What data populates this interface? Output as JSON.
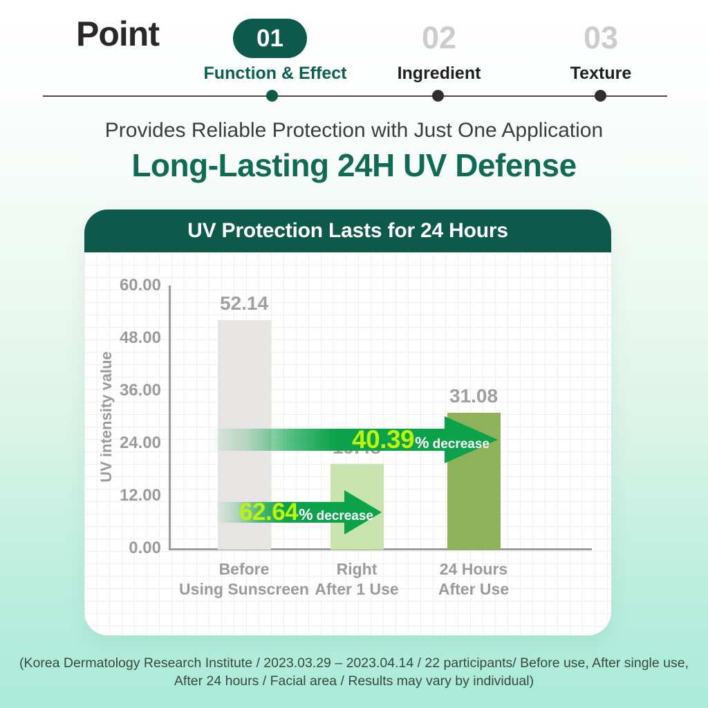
{
  "stepper": {
    "title": "Point",
    "steps": [
      {
        "number": "01",
        "label": "Function & Effect",
        "active": true
      },
      {
        "number": "02",
        "label": "Ingredient",
        "active": false
      },
      {
        "number": "03",
        "label": "Texture",
        "active": false
      }
    ]
  },
  "headline": {
    "subtitle": "Provides Reliable Protection with Just One Application",
    "title": "Long-Lasting 24H UV Defense"
  },
  "card": {
    "header": "UV Protection Lasts for 24 Hours"
  },
  "chart_data": {
    "type": "bar",
    "title": "UV Protection Lasts for 24 Hours",
    "xlabel": "",
    "ylabel": "UV intensity value",
    "ylim": [
      0,
      60
    ],
    "yticks": [
      "60.00",
      "48.00",
      "36.00",
      "24.00",
      "12.00",
      "0.00"
    ],
    "grid": true,
    "categories": [
      [
        "Before",
        "Using Sunscreen"
      ],
      [
        "Right",
        "After 1 Use"
      ],
      [
        "24 Hours",
        "After Use"
      ]
    ],
    "values": [
      52.14,
      19.48,
      31.08
    ],
    "value_labels": [
      "52.14",
      "19.48",
      "31.08"
    ],
    "bar_colors": [
      "#e6e5e3",
      "#c8e3ab",
      "#8eb25a"
    ],
    "annotations": [
      {
        "value": "62.64",
        "sign": "%",
        "word": "decrease",
        "from_category": 0,
        "to_category": 1,
        "at_y": 8.3
      },
      {
        "value": "40.39",
        "sign": "%",
        "word": "decrease",
        "from_category": 0,
        "to_category": 2,
        "at_y": 24.5
      }
    ]
  },
  "footnote": {
    "lines": [
      "(Korea Dermatology Research Institute / 2023.03.29 – 2023.04.14 / 22 participants/ Before use, After single use,",
      "After 24 hours / Facial area / Results may vary by individual)"
    ]
  },
  "colors": {
    "accent_dark_green": "#0d594a",
    "accent_green_text": "#106b55",
    "arrow_green": "#0ba24b",
    "arrow_number_yellow": "#bdf407",
    "inactive_gray": "#cccccc",
    "axis_gray": "#9a9a9a",
    "background_mint": "#aaead7"
  }
}
